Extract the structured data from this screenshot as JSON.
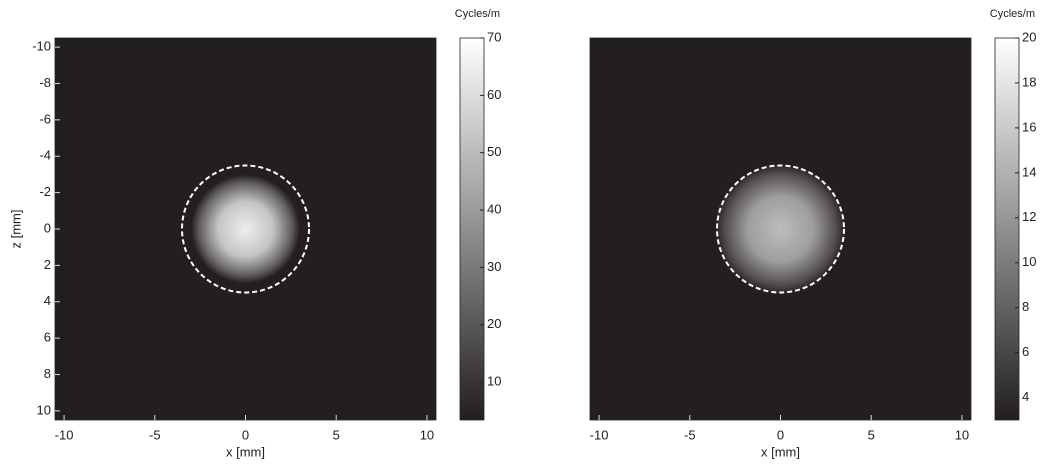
{
  "chart_data": [
    {
      "type": "heatmap",
      "xlabel": "x [mm]",
      "ylabel": "z [mm]",
      "colorbar_label": "Cycles/m",
      "xlim": [
        -10.5,
        10.5
      ],
      "ylim": [
        -10.5,
        10.5
      ],
      "y_reversed": true,
      "xticks": [
        -10,
        -5,
        0,
        5,
        10
      ],
      "yticks": [
        -10,
        -8,
        -6,
        -4,
        -2,
        0,
        2,
        4,
        6,
        8,
        10
      ],
      "colormap": "gray",
      "clim": [
        3.4,
        70
      ],
      "cticks": [
        10,
        20,
        30,
        40,
        50,
        60,
        70
      ],
      "blob": {
        "x": 0,
        "y": 0,
        "r": 3,
        "peak": 65
      },
      "ring": {
        "x": 0,
        "y": 0,
        "r": 3.5
      }
    },
    {
      "type": "heatmap",
      "xlabel": "x [mm]",
      "colorbar_label": "Cycles/m",
      "xlim": [
        -10.5,
        10.5
      ],
      "ylim": [
        -10.5,
        10.5
      ],
      "y_reversed": true,
      "xticks": [
        -10,
        -5,
        0,
        5,
        10
      ],
      "colormap": "gray",
      "clim": [
        3,
        20
      ],
      "cticks": [
        4,
        6,
        8,
        10,
        12,
        14,
        16,
        18,
        20
      ],
      "blob": {
        "x": 0,
        "y": 0,
        "r": 3.6,
        "peak": 15
      },
      "ring": {
        "x": 0,
        "y": 0,
        "r": 3.5
      }
    }
  ]
}
